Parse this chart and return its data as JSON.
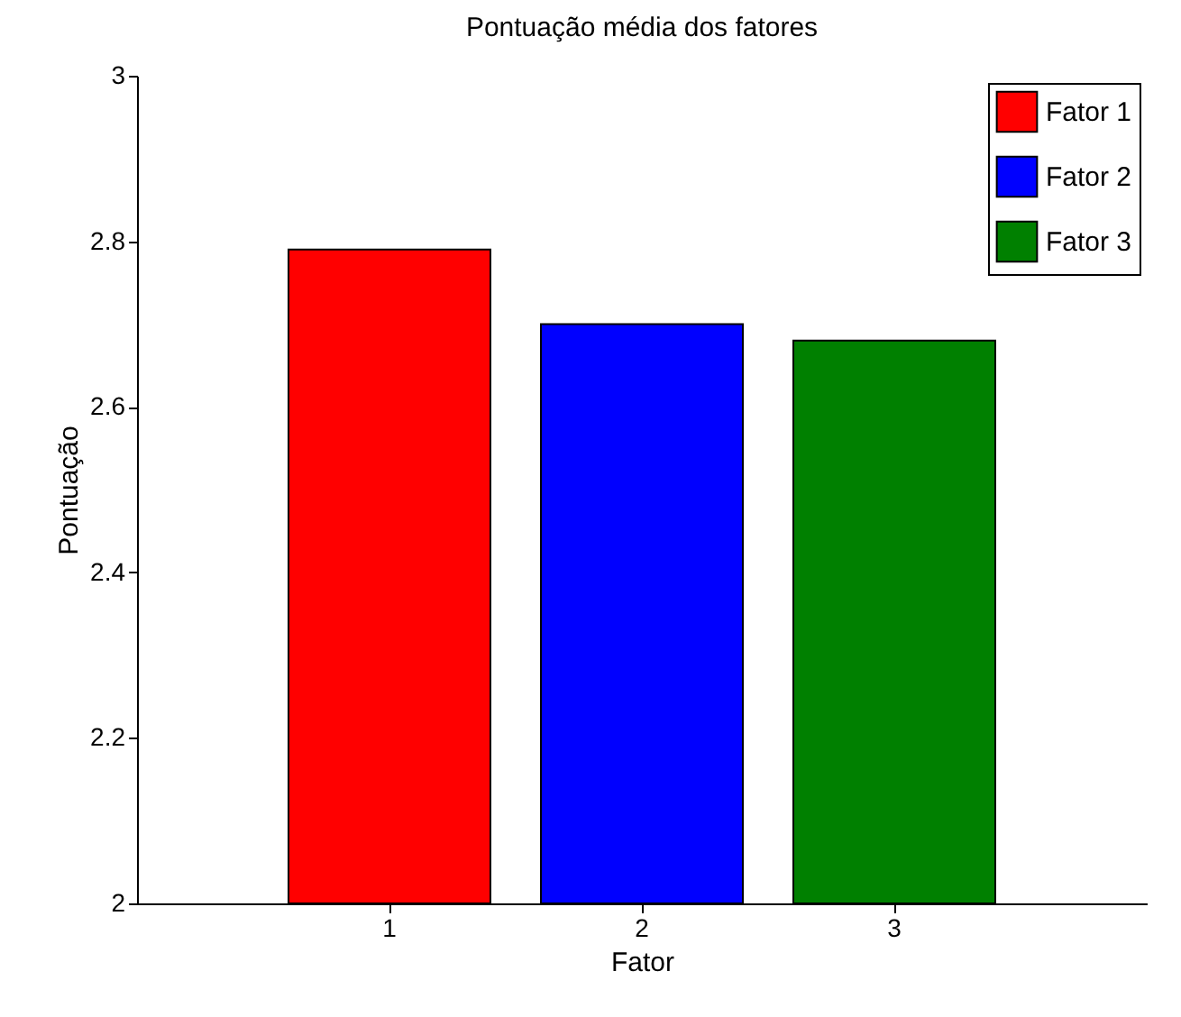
{
  "chart_data": {
    "type": "bar",
    "title": "Pontuação média dos fatores",
    "xlabel": "Fator",
    "ylabel": "Pontuação",
    "categories": [
      "1",
      "2",
      "3"
    ],
    "series": [
      {
        "name": "Fator 1",
        "color": "#ff0000",
        "values": [
          2.79,
          null,
          null
        ]
      },
      {
        "name": "Fator 2",
        "color": "#0000ff",
        "values": [
          null,
          2.7,
          null
        ]
      },
      {
        "name": "Fator 3",
        "color": "#008000",
        "values": [
          null,
          null,
          2.68
        ]
      }
    ],
    "ylim": [
      2,
      3
    ],
    "yticks": [
      2,
      2.2,
      2.4,
      2.6,
      2.8,
      3
    ],
    "legend": "top right",
    "grid": false
  }
}
